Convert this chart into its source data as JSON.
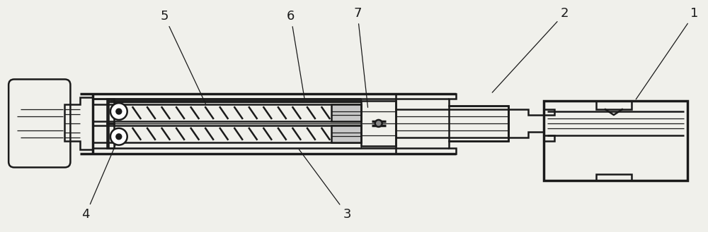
{
  "bg_color": "#f0f0eb",
  "line_color": "#1a1a1a",
  "lw_main": 1.8,
  "lw_thin": 0.9,
  "lw_thick": 2.5,
  "label_fontsize": 13,
  "label_color": "#1a1a1a"
}
